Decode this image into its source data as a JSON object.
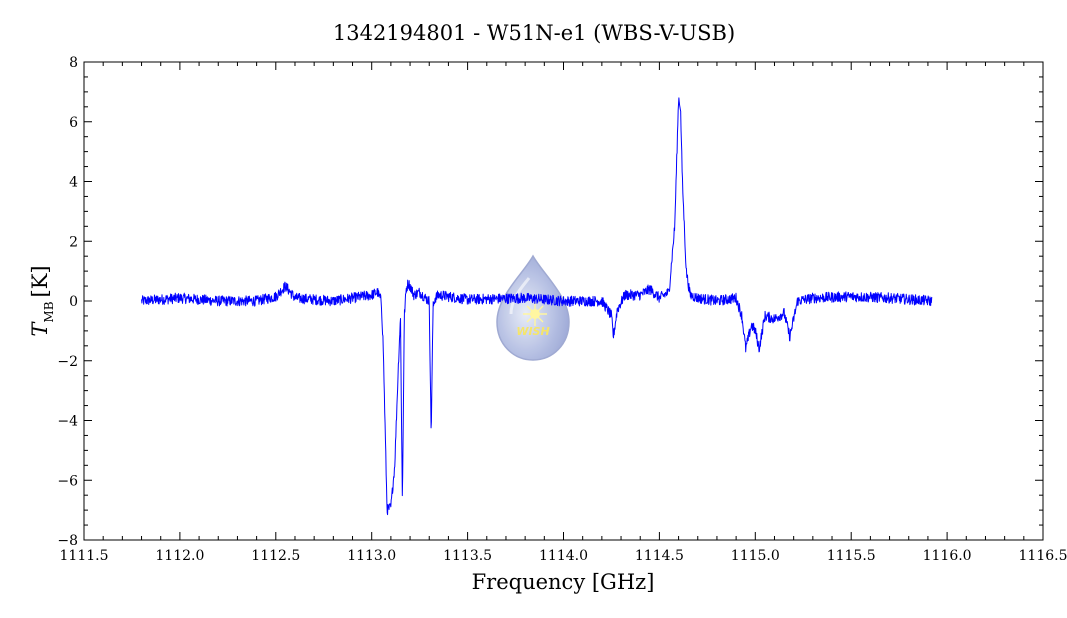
{
  "chart_data": {
    "type": "line",
    "title": "1342194801 - W51N-e1 (WBS-V-USB)",
    "xlabel": "Frequency [GHz]",
    "ylabel_main": "T",
    "ylabel_sub": "MB",
    "ylabel_unit": "[K]",
    "xlim": [
      1111.5,
      1116.5
    ],
    "ylim": [
      -8,
      8
    ],
    "x_ticks": [
      1111.5,
      1112.0,
      1112.5,
      1113.0,
      1113.5,
      1114.0,
      1114.5,
      1115.0,
      1115.5,
      1116.0,
      1116.5
    ],
    "x_tick_labels": [
      "1111.5",
      "1112.0",
      "1112.5",
      "1113.0",
      "1113.5",
      "1114.0",
      "1114.5",
      "1115.0",
      "1115.5",
      "1116.0",
      "1116.5"
    ],
    "y_ticks": [
      -8,
      -6,
      -4,
      -2,
      0,
      2,
      4,
      6,
      8
    ],
    "y_tick_labels": [
      "−8",
      "−6",
      "−4",
      "−2",
      "0",
      "2",
      "4",
      "6",
      "8"
    ],
    "grid": false,
    "legend": "none",
    "line_color": "#0000ff",
    "series": [
      {
        "x": [
          1111.8,
          1112.0,
          1112.2,
          1112.4,
          1112.5,
          1112.55,
          1112.6,
          1112.8,
          1113.0,
          1113.03,
          1113.05,
          1113.06,
          1113.08,
          1113.1,
          1113.12,
          1113.14,
          1113.15,
          1113.16,
          1113.17,
          1113.18,
          1113.19,
          1113.2,
          1113.22,
          1113.25,
          1113.28,
          1113.3,
          1113.31,
          1113.32,
          1113.33,
          1113.35,
          1113.5,
          1113.8,
          1114.0,
          1114.2,
          1114.25,
          1114.26,
          1114.28,
          1114.32,
          1114.4,
          1114.45,
          1114.5,
          1114.55,
          1114.58,
          1114.6,
          1114.61,
          1114.62,
          1114.64,
          1114.66,
          1114.7,
          1114.8,
          1114.9,
          1114.93,
          1114.95,
          1114.98,
          1115.0,
          1115.02,
          1115.05,
          1115.1,
          1115.15,
          1115.18,
          1115.22,
          1115.3,
          1115.5,
          1115.7,
          1115.92
        ],
        "y": [
          0.0,
          0.1,
          0.0,
          0.0,
          0.15,
          0.5,
          0.1,
          0.0,
          0.2,
          0.3,
          0.0,
          -1.5,
          -7.0,
          -6.9,
          -5.5,
          -2.0,
          -0.5,
          -6.8,
          -0.5,
          0.4,
          0.6,
          0.5,
          0.2,
          0.3,
          0.1,
          0.0,
          -4.5,
          -0.2,
          0.1,
          0.2,
          0.05,
          0.1,
          0.0,
          0.0,
          -0.5,
          -1.2,
          -0.3,
          0.2,
          0.2,
          0.4,
          0.1,
          0.3,
          2.5,
          6.8,
          6.5,
          4.0,
          1.0,
          0.2,
          0.1,
          0.0,
          0.1,
          -0.5,
          -1.6,
          -0.8,
          -1.0,
          -1.6,
          -0.5,
          -0.6,
          -0.4,
          -1.2,
          0.0,
          0.1,
          0.15,
          0.1,
          0.0
        ]
      }
    ]
  },
  "watermark": {
    "text": "WISH"
  }
}
